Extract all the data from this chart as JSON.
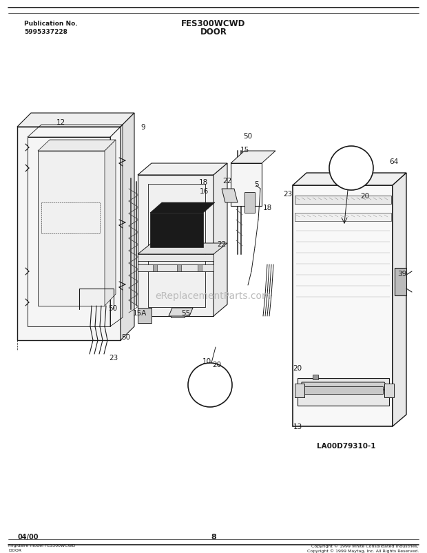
{
  "title_line1": "FES300WCWD",
  "title_line2": "DOOR",
  "pub_no_label": "Publication No.",
  "pub_no": "5995337228",
  "page_num": "8",
  "date": "04/00",
  "diagram_id": "LA00D79310-1",
  "footer_left_line1": "Frigidaire model FES300WCWD",
  "footer_left_line2": "DOOR",
  "footer_right_line1": "Copyright © 1999 White Consolidated Industries,",
  "footer_right_line2": "Copyright © 1999 Maytag, Inc. All Rights Reserved.",
  "watermark": "eReplacementParts.com",
  "bg_color": "#ffffff",
  "lc": "#1a1a1a"
}
